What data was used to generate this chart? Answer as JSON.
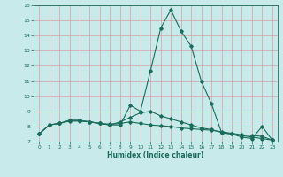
{
  "xlabel": "Humidex (Indice chaleur)",
  "x_values": [
    0,
    1,
    2,
    3,
    4,
    5,
    6,
    7,
    8,
    9,
    10,
    11,
    12,
    13,
    14,
    15,
    16,
    17,
    18,
    19,
    20,
    21,
    22,
    23
  ],
  "line1_y": [
    7.5,
    8.1,
    8.2,
    8.4,
    8.4,
    8.3,
    8.2,
    8.1,
    8.1,
    9.4,
    9.0,
    11.7,
    14.5,
    15.7,
    14.3,
    13.3,
    11.0,
    9.5,
    7.6,
    7.5,
    7.3,
    7.2,
    8.0,
    7.1
  ],
  "line2_y": [
    7.5,
    8.1,
    8.2,
    8.4,
    8.4,
    8.3,
    8.2,
    8.1,
    8.3,
    8.6,
    8.9,
    9.0,
    8.7,
    8.5,
    8.3,
    8.1,
    7.9,
    7.8,
    7.6,
    7.5,
    7.4,
    7.3,
    7.2,
    7.1
  ],
  "line3_y": [
    7.5,
    8.1,
    8.2,
    8.35,
    8.35,
    8.3,
    8.2,
    8.15,
    8.2,
    8.3,
    8.2,
    8.1,
    8.05,
    8.0,
    7.9,
    7.85,
    7.8,
    7.75,
    7.65,
    7.55,
    7.45,
    7.4,
    7.35,
    7.1
  ],
  "line_color": "#1a6b5a",
  "bg_color": "#c8eaea",
  "grid_color": "#d4a0a0",
  "ylim": [
    7,
    16
  ],
  "xlim_min": -0.5,
  "xlim_max": 23.5,
  "yticks": [
    7,
    8,
    9,
    10,
    11,
    12,
    13,
    14,
    15,
    16
  ],
  "xticks": [
    0,
    1,
    2,
    3,
    4,
    5,
    6,
    7,
    8,
    9,
    10,
    11,
    12,
    13,
    14,
    15,
    16,
    17,
    18,
    19,
    20,
    21,
    22,
    23
  ]
}
